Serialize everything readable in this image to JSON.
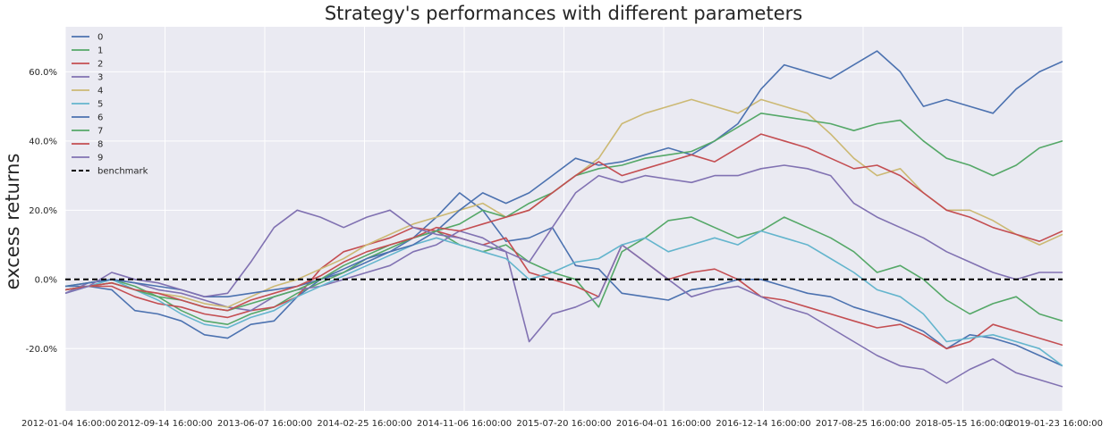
{
  "chart_data": {
    "type": "line",
    "title": "Strategy's performances with different parameters",
    "xlabel": "",
    "ylabel": "excess returns",
    "x_tick_labels": [
      "2012-01-04 16:00:00",
      "2012-09-14 16:00:00",
      "2013-06-07 16:00:00",
      "2014-02-25 16:00:00",
      "2014-11-06 16:00:00",
      "2015-07-20 16:00:00",
      "2016-04-01 16:00:00",
      "2016-12-14 16:00:00",
      "2017-08-25 16:00:00",
      "2018-05-15 16:00:00",
      "2019-01-23 16:00:00"
    ],
    "y_ticks": [
      -0.2,
      0.0,
      0.2,
      0.4,
      0.6
    ],
    "y_tick_labels": [
      "-20.0%",
      "0.0%",
      "20.0%",
      "40.0%",
      "60.0%"
    ],
    "ylim": [
      -0.38,
      0.73
    ],
    "grid": true,
    "legend_position": "top-left",
    "series": [
      {
        "name": "0",
        "color": "#4C72B0",
        "values": [
          -0.02,
          -0.02,
          -0.03,
          -0.09,
          -0.1,
          -0.12,
          -0.16,
          -0.17,
          -0.13,
          -0.12,
          -0.05,
          0.0,
          0.02,
          0.05,
          0.08,
          0.12,
          0.18,
          0.25,
          0.2,
          0.11,
          0.12,
          0.15,
          0.04,
          0.03,
          -0.04,
          -0.05,
          -0.06,
          -0.03,
          -0.02,
          0.0,
          0.0,
          -0.02,
          -0.04,
          -0.05,
          -0.08,
          -0.1,
          -0.12,
          -0.15,
          -0.2,
          -0.16,
          -0.17,
          -0.19,
          -0.22,
          -0.25
        ]
      },
      {
        "name": "1",
        "color": "#55A868",
        "values": [
          -0.02,
          -0.01,
          0.0,
          -0.02,
          -0.05,
          -0.09,
          -0.12,
          -0.13,
          -0.1,
          -0.08,
          -0.04,
          -0.01,
          0.02,
          0.06,
          0.09,
          0.12,
          0.14,
          0.1,
          0.08,
          0.1,
          0.05,
          0.02,
          0.0,
          -0.08,
          0.08,
          0.12,
          0.17,
          0.18,
          0.15,
          0.12,
          0.14,
          0.18,
          0.15,
          0.12,
          0.08,
          0.02,
          0.04,
          0.0,
          -0.06,
          -0.1,
          -0.07,
          -0.05,
          -0.1,
          -0.12
        ]
      },
      {
        "name": "2",
        "color": "#C44E52",
        "values": [
          -0.03,
          -0.02,
          -0.02,
          -0.05,
          -0.07,
          -0.08,
          -0.1,
          -0.11,
          -0.09,
          -0.08,
          -0.05,
          0.03,
          0.08,
          0.1,
          0.12,
          0.15,
          0.14,
          0.12,
          0.1,
          0.12,
          0.02,
          0.0,
          -0.02,
          -0.05,
          0.1,
          0.05,
          0.0,
          0.02,
          0.03,
          0.0,
          -0.05,
          -0.06,
          -0.08,
          -0.1,
          -0.12,
          -0.14,
          -0.13,
          -0.16,
          -0.2,
          -0.18,
          -0.13,
          -0.15,
          -0.17,
          -0.19
        ]
      },
      {
        "name": "3",
        "color": "#8172B2",
        "values": [
          -0.04,
          -0.01,
          0.0,
          -0.01,
          -0.03,
          -0.04,
          -0.06,
          -0.08,
          -0.09,
          -0.05,
          -0.03,
          -0.02,
          0.0,
          0.02,
          0.04,
          0.08,
          0.1,
          0.14,
          0.12,
          0.08,
          -0.18,
          -0.1,
          -0.08,
          -0.05,
          0.1,
          0.05,
          0.0,
          -0.05,
          -0.03,
          -0.02,
          -0.05,
          -0.08,
          -0.1,
          -0.14,
          -0.18,
          -0.22,
          -0.25,
          -0.26,
          -0.3,
          -0.26,
          -0.23,
          -0.27,
          -0.29,
          -0.31
        ]
      },
      {
        "name": "4",
        "color": "#CCB974",
        "values": [
          -0.03,
          -0.02,
          -0.01,
          -0.03,
          -0.04,
          -0.05,
          -0.07,
          -0.08,
          -0.05,
          -0.02,
          0.0,
          0.03,
          0.06,
          0.1,
          0.13,
          0.16,
          0.18,
          0.2,
          0.22,
          0.18,
          0.2,
          0.25,
          0.3,
          0.35,
          0.45,
          0.48,
          0.5,
          0.52,
          0.5,
          0.48,
          0.52,
          0.5,
          0.48,
          0.42,
          0.35,
          0.3,
          0.32,
          0.25,
          0.2,
          0.2,
          0.17,
          0.13,
          0.1,
          0.13
        ]
      },
      {
        "name": "5",
        "color": "#64B5CD",
        "values": [
          -0.04,
          -0.02,
          0.0,
          -0.03,
          -0.06,
          -0.1,
          -0.13,
          -0.14,
          -0.11,
          -0.09,
          -0.05,
          -0.02,
          0.01,
          0.04,
          0.07,
          0.1,
          0.12,
          0.1,
          0.08,
          0.06,
          0.0,
          0.02,
          0.05,
          0.06,
          0.1,
          0.12,
          0.08,
          0.1,
          0.12,
          0.1,
          0.14,
          0.12,
          0.1,
          0.06,
          0.02,
          -0.03,
          -0.05,
          -0.1,
          -0.18,
          -0.17,
          -0.16,
          -0.18,
          -0.2,
          -0.25
        ]
      },
      {
        "name": "6",
        "color": "#4C72B0",
        "values": [
          -0.02,
          -0.01,
          0.0,
          -0.01,
          -0.02,
          -0.03,
          -0.05,
          -0.05,
          -0.04,
          -0.03,
          -0.02,
          0.0,
          0.03,
          0.06,
          0.08,
          0.1,
          0.14,
          0.2,
          0.25,
          0.22,
          0.25,
          0.3,
          0.35,
          0.33,
          0.34,
          0.36,
          0.38,
          0.36,
          0.4,
          0.45,
          0.55,
          0.62,
          0.6,
          0.58,
          0.62,
          0.66,
          0.6,
          0.5,
          0.52,
          0.5,
          0.48,
          0.55,
          0.6,
          0.63
        ]
      },
      {
        "name": "7",
        "color": "#55A868",
        "values": [
          -0.03,
          -0.02,
          -0.01,
          -0.03,
          -0.05,
          -0.06,
          -0.08,
          -0.09,
          -0.07,
          -0.05,
          -0.03,
          0.0,
          0.04,
          0.07,
          0.1,
          0.12,
          0.14,
          0.16,
          0.2,
          0.18,
          0.22,
          0.25,
          0.3,
          0.32,
          0.33,
          0.35,
          0.36,
          0.37,
          0.4,
          0.44,
          0.48,
          0.47,
          0.46,
          0.45,
          0.43,
          0.45,
          0.46,
          0.4,
          0.35,
          0.33,
          0.3,
          0.33,
          0.38,
          0.4
        ]
      },
      {
        "name": "8",
        "color": "#C44E52",
        "values": [
          -0.03,
          -0.02,
          -0.01,
          -0.03,
          -0.04,
          -0.06,
          -0.08,
          -0.09,
          -0.06,
          -0.04,
          -0.02,
          0.01,
          0.05,
          0.08,
          0.1,
          0.12,
          0.15,
          0.14,
          0.16,
          0.18,
          0.2,
          0.25,
          0.3,
          0.34,
          0.3,
          0.32,
          0.34,
          0.36,
          0.34,
          0.38,
          0.42,
          0.4,
          0.38,
          0.35,
          0.32,
          0.33,
          0.3,
          0.25,
          0.2,
          0.18,
          0.15,
          0.13,
          0.11,
          0.14
        ]
      },
      {
        "name": "9",
        "color": "#8172B2",
        "values": [
          -0.04,
          -0.02,
          0.02,
          0.0,
          -0.01,
          -0.03,
          -0.05,
          -0.04,
          0.05,
          0.15,
          0.2,
          0.18,
          0.15,
          0.18,
          0.2,
          0.15,
          0.13,
          0.12,
          0.1,
          0.08,
          0.05,
          0.15,
          0.25,
          0.3,
          0.28,
          0.3,
          0.29,
          0.28,
          0.3,
          0.3,
          0.32,
          0.33,
          0.32,
          0.3,
          0.22,
          0.18,
          0.15,
          0.12,
          0.08,
          0.05,
          0.02,
          0.0,
          0.02,
          0.02
        ]
      },
      {
        "name": "benchmark",
        "color": "#000000",
        "dashed": true,
        "values": [
          0,
          0,
          0,
          0,
          0,
          0,
          0,
          0,
          0,
          0,
          0,
          0,
          0,
          0,
          0,
          0,
          0,
          0,
          0,
          0,
          0,
          0,
          0,
          0,
          0,
          0,
          0,
          0,
          0,
          0,
          0,
          0,
          0,
          0,
          0,
          0,
          0,
          0,
          0,
          0,
          0,
          0,
          0,
          0
        ]
      }
    ]
  }
}
